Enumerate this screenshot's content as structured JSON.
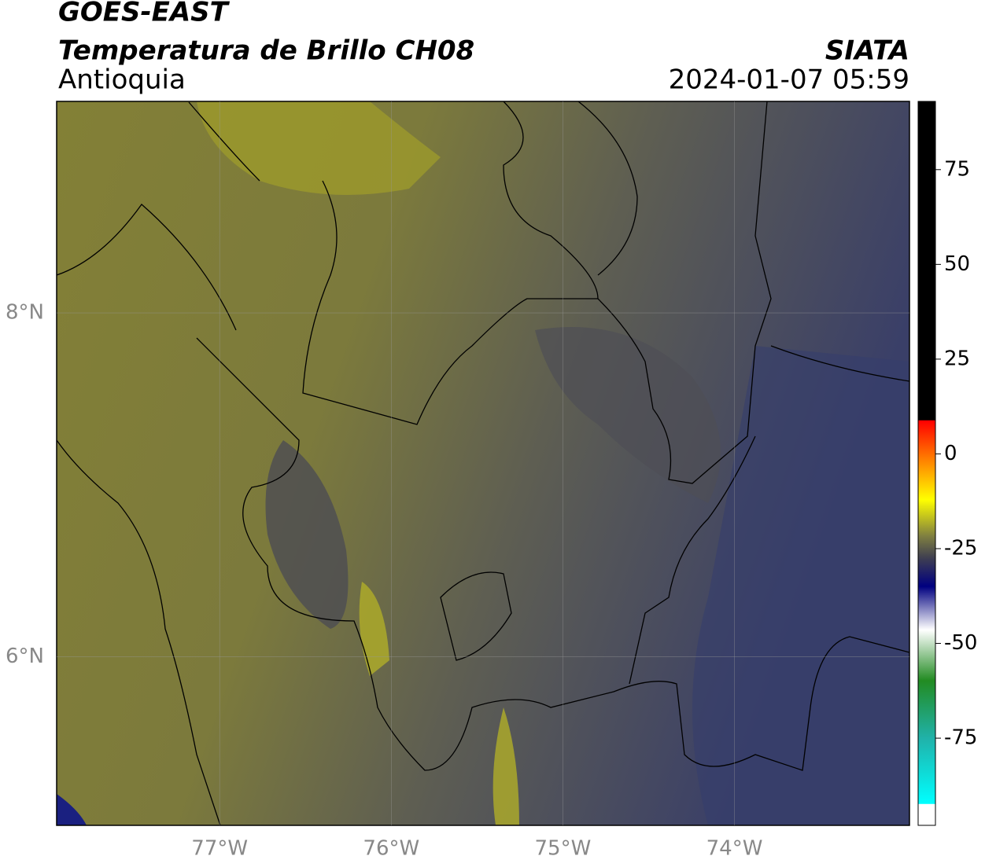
{
  "header": {
    "title": "GOES-EAST",
    "subtitle": "Temperatura de Brillo CH08",
    "region": "Antioquia",
    "source": "SIATA",
    "datetime": "2024-01-07 05:59"
  },
  "map": {
    "xlim": [
      -77.95,
      -72.98
    ],
    "ylim": [
      5.02,
      9.23
    ],
    "xticks": [
      {
        "value": -77,
        "label": "77°W"
      },
      {
        "value": -76,
        "label": "76°W"
      },
      {
        "value": -75,
        "label": "75°W"
      },
      {
        "value": -74,
        "label": "74°W"
      }
    ],
    "yticks": [
      {
        "value": 6,
        "label": "6°N"
      },
      {
        "value": 8,
        "label": "8°N"
      }
    ],
    "grid": true
  },
  "colorbar": {
    "lim": [
      -98,
      93
    ],
    "ticks": [
      75,
      50,
      25,
      0,
      -25,
      -50,
      -75
    ]
  }
}
